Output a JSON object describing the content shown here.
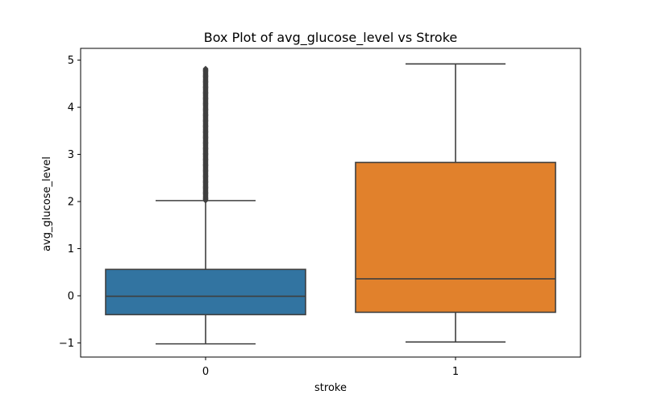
{
  "chart_data": {
    "type": "box",
    "title": "Box Plot of avg_glucose_level vs Stroke",
    "xlabel": "stroke",
    "ylabel": "avg_glucose_level",
    "ylim": [
      -1.3,
      5.25
    ],
    "yticks": [
      -1,
      0,
      1,
      2,
      3,
      4,
      5
    ],
    "ytick_labels": [
      "−1",
      "0",
      "1",
      "2",
      "3",
      "4",
      "5"
    ],
    "grid": false,
    "categories": [
      "0",
      "1"
    ],
    "boxes": [
      {
        "category": "0",
        "color": "#3274a1",
        "whisker_low": -1.02,
        "q1": -0.4,
        "median": -0.01,
        "q3": 0.56,
        "whisker_high": 2.02,
        "outlier_range": [
          2.02,
          4.83
        ]
      },
      {
        "category": "1",
        "color": "#e1812c",
        "whisker_low": -0.98,
        "q1": -0.35,
        "median": 0.36,
        "q3": 2.83,
        "whisker_high": 4.92,
        "outlier_range": null
      }
    ]
  }
}
